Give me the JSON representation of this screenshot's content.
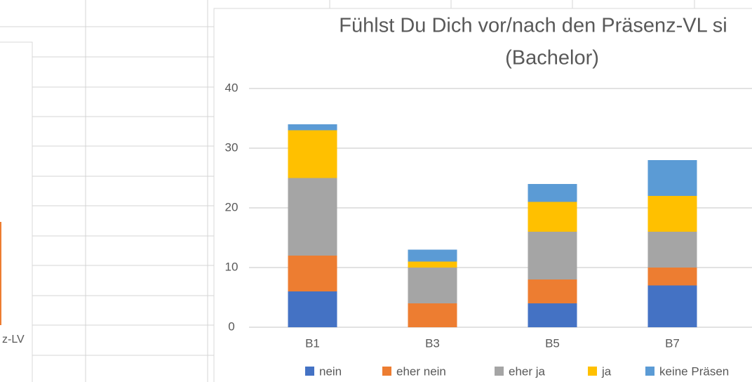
{
  "background": {
    "left_chart_label": "z-LV"
  },
  "chart_data": {
    "type": "stacked_bar",
    "title": [
      "Fühlst Du Dich vor/nach den Präsenz-VL si",
      "(Bachelor)"
    ],
    "categories": [
      "B1",
      "B3",
      "B5",
      "B7"
    ],
    "series": [
      {
        "name": "nein",
        "color": "#4472c4",
        "values": [
          6,
          0,
          4,
          7
        ]
      },
      {
        "name": "eher nein",
        "color": "#ed7d31",
        "values": [
          6,
          4,
          4,
          3
        ]
      },
      {
        "name": "eher ja",
        "color": "#a5a5a5",
        "values": [
          13,
          6,
          8,
          6
        ]
      },
      {
        "name": "ja",
        "color": "#ffc000",
        "values": [
          8,
          1,
          5,
          6
        ]
      },
      {
        "name": "keine Präsen",
        "color": "#5b9bd5",
        "values": [
          1,
          2,
          3,
          6
        ]
      }
    ],
    "ylim": [
      0,
      40
    ],
    "yticks": [
      0,
      10,
      20,
      30,
      40
    ],
    "grid": true,
    "legend": "bottom"
  }
}
